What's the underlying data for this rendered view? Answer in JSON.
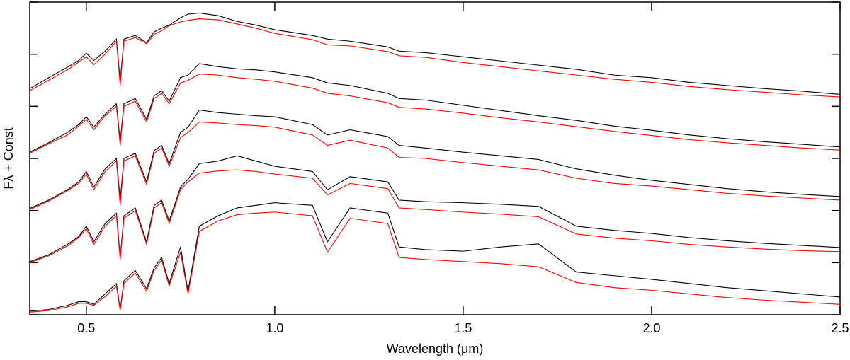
{
  "chart_data": {
    "type": "line",
    "xlabel": "Wavelength (μm)",
    "ylabel": "Fλ + Const",
    "xlim": [
      0.35,
      2.5
    ],
    "ylim": [
      0,
      6
    ],
    "xticks": [
      0.5,
      {
        "value": 1.0,
        "label": "1.0"
      },
      1.5,
      {
        "value": 2.0,
        "label": "2.0"
      },
      2.5
    ],
    "yticks": [
      0,
      1,
      2,
      3,
      4,
      5,
      6
    ],
    "grid": false,
    "x": [
      0.35,
      0.4,
      0.45,
      0.48,
      0.5,
      0.52,
      0.55,
      0.58,
      0.59,
      0.6,
      0.63,
      0.66,
      0.68,
      0.7,
      0.72,
      0.75,
      0.77,
      0.8,
      0.85,
      0.9,
      0.95,
      1.0,
      1.1,
      1.14,
      1.2,
      1.3,
      1.33,
      1.4,
      1.5,
      1.6,
      1.7,
      1.8,
      1.9,
      2.0,
      2.1,
      2.2,
      2.3,
      2.4,
      2.5
    ],
    "series": [
      {
        "color": "#000000",
        "values": [
          4.34,
          4.55,
          4.75,
          4.88,
          5.02,
          4.88,
          5.06,
          5.29,
          4.48,
          5.29,
          5.36,
          5.22,
          5.43,
          5.5,
          5.56,
          5.7,
          5.77,
          5.79,
          5.74,
          5.63,
          5.56,
          5.47,
          5.36,
          5.29,
          5.25,
          5.14,
          5.06,
          5.03,
          4.95,
          4.87,
          4.79,
          4.71,
          4.6,
          4.55,
          4.46,
          4.4,
          4.34,
          4.29,
          4.23
        ]
      },
      {
        "color": "#ff0000",
        "values": [
          4.3,
          4.5,
          4.7,
          4.85,
          4.95,
          4.8,
          5.0,
          5.25,
          4.4,
          5.25,
          5.32,
          5.2,
          5.38,
          5.45,
          5.55,
          5.62,
          5.65,
          5.68,
          5.66,
          5.58,
          5.5,
          5.4,
          5.28,
          5.18,
          5.16,
          5.05,
          4.97,
          4.94,
          4.84,
          4.76,
          4.68,
          4.6,
          4.52,
          4.46,
          4.38,
          4.32,
          4.27,
          4.22,
          4.18
        ]
      },
      {
        "color": "#000000",
        "values": [
          3.12,
          3.3,
          3.5,
          3.65,
          3.8,
          3.6,
          3.85,
          4.05,
          3.32,
          4.05,
          4.15,
          3.75,
          4.2,
          4.3,
          4.1,
          4.55,
          4.6,
          4.82,
          4.76,
          4.72,
          4.7,
          4.66,
          4.55,
          4.45,
          4.4,
          4.25,
          4.15,
          4.12,
          4.02,
          3.92,
          3.82,
          3.73,
          3.62,
          3.54,
          3.45,
          3.38,
          3.32,
          3.27,
          3.22
        ]
      },
      {
        "color": "#ff0000",
        "values": [
          3.1,
          3.28,
          3.45,
          3.62,
          3.75,
          3.55,
          3.82,
          4.0,
          3.25,
          4.0,
          4.1,
          3.7,
          4.15,
          4.25,
          4.05,
          4.45,
          4.5,
          4.62,
          4.6,
          4.55,
          4.52,
          4.48,
          4.35,
          4.25,
          4.2,
          4.07,
          3.98,
          3.95,
          3.87,
          3.78,
          3.7,
          3.61,
          3.52,
          3.44,
          3.36,
          3.3,
          3.25,
          3.2,
          3.16
        ]
      },
      {
        "color": "#000000",
        "values": [
          2.04,
          2.2,
          2.4,
          2.55,
          2.75,
          2.45,
          2.8,
          3.0,
          2.2,
          3.0,
          3.1,
          2.55,
          3.15,
          3.25,
          2.9,
          3.5,
          3.6,
          3.93,
          3.88,
          3.85,
          3.82,
          3.8,
          3.65,
          3.45,
          3.55,
          3.42,
          3.25,
          3.2,
          3.12,
          3.05,
          2.98,
          2.8,
          2.68,
          2.58,
          2.5,
          2.42,
          2.36,
          2.31,
          2.27
        ]
      },
      {
        "color": "#ff0000",
        "values": [
          2.02,
          2.18,
          2.38,
          2.52,
          2.7,
          2.4,
          2.75,
          2.95,
          2.1,
          2.95,
          3.05,
          2.5,
          3.1,
          3.2,
          2.85,
          3.4,
          3.5,
          3.7,
          3.68,
          3.65,
          3.63,
          3.6,
          3.45,
          3.25,
          3.35,
          3.2,
          3.02,
          3.0,
          2.92,
          2.85,
          2.78,
          2.62,
          2.52,
          2.47,
          2.4,
          2.33,
          2.28,
          2.24,
          2.2
        ]
      },
      {
        "color": "#000000",
        "values": [
          1.02,
          1.15,
          1.35,
          1.5,
          1.7,
          1.4,
          1.75,
          1.95,
          1.1,
          1.9,
          2.05,
          1.4,
          2.1,
          2.2,
          1.8,
          2.45,
          2.6,
          2.9,
          2.95,
          3.05,
          2.95,
          2.85,
          2.75,
          2.4,
          2.65,
          2.55,
          2.2,
          2.17,
          2.15,
          2.12,
          2.08,
          1.7,
          1.62,
          1.56,
          1.48,
          1.42,
          1.37,
          1.33,
          1.29
        ]
      },
      {
        "color": "#ff0000",
        "values": [
          1.0,
          1.13,
          1.32,
          1.48,
          1.65,
          1.35,
          1.7,
          1.9,
          1.05,
          1.85,
          2.0,
          1.35,
          2.05,
          2.15,
          1.75,
          2.4,
          2.55,
          2.72,
          2.76,
          2.78,
          2.75,
          2.7,
          2.62,
          2.3,
          2.52,
          2.42,
          2.05,
          2.02,
          1.97,
          1.93,
          1.88,
          1.55,
          1.47,
          1.42,
          1.35,
          1.3,
          1.26,
          1.23,
          1.21
        ]
      },
      {
        "color": "#000000",
        "values": [
          0.07,
          0.1,
          0.18,
          0.25,
          0.25,
          0.2,
          0.4,
          0.6,
          0.1,
          0.65,
          0.85,
          0.5,
          0.9,
          1.1,
          0.6,
          1.3,
          0.45,
          1.7,
          1.9,
          2.05,
          2.1,
          2.15,
          2.1,
          1.4,
          2.05,
          1.95,
          1.3,
          1.25,
          1.22,
          1.3,
          1.36,
          0.82,
          0.75,
          0.68,
          0.6,
          0.52,
          0.46,
          0.4,
          0.34
        ]
      },
      {
        "color": "#ff0000",
        "values": [
          0.05,
          0.08,
          0.15,
          0.22,
          0.22,
          0.18,
          0.35,
          0.55,
          0.08,
          0.6,
          0.8,
          0.45,
          0.85,
          1.05,
          0.55,
          1.2,
          0.4,
          1.6,
          1.8,
          1.92,
          1.95,
          1.97,
          1.9,
          1.2,
          1.85,
          1.75,
          1.1,
          1.06,
          1.02,
          0.98,
          0.92,
          0.62,
          0.52,
          0.47,
          0.4,
          0.33,
          0.28,
          0.24,
          0.2
        ]
      }
    ]
  }
}
